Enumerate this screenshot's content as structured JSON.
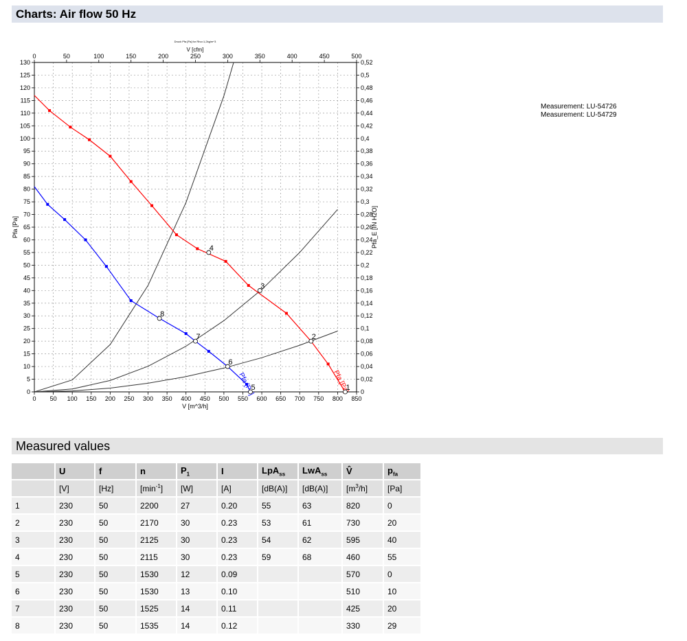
{
  "page": {
    "charts_heading": "Charts: Air flow 50 Hz",
    "measured_heading": "Measured values"
  },
  "measurements": [
    "Measurement: LU-54726",
    "Measurement: LU-54729"
  ],
  "chart_data": {
    "type": "line",
    "top_caption": "Druck Pfa [Pa] for Rho=1,2kg/m^3",
    "xlabel": "V [m^3/h]",
    "x2label": "V [cfm]",
    "ylabel": "Pfa [Pa]",
    "y2label": "Pfa_E [IN H2O]",
    "xlim": [
      0,
      850
    ],
    "ylim": [
      0,
      130
    ],
    "x2lim": [
      0,
      500
    ],
    "y2lim": [
      0,
      0.52
    ],
    "x_ticks": [
      0,
      50,
      100,
      150,
      200,
      250,
      300,
      350,
      400,
      450,
      500,
      550,
      600,
      650,
      700,
      750,
      800,
      850
    ],
    "y_ticks": [
      0,
      5,
      10,
      15,
      20,
      25,
      30,
      35,
      40,
      45,
      50,
      55,
      60,
      65,
      70,
      75,
      80,
      85,
      90,
      95,
      100,
      105,
      110,
      115,
      120,
      125,
      130
    ],
    "x2_ticks": [
      0,
      50,
      100,
      150,
      200,
      250,
      300,
      350,
      400,
      450,
      500
    ],
    "y2_ticks": [
      "0",
      "0,02",
      "0,04",
      "0,06",
      "0,08",
      "0,1",
      "0,12",
      "0,14",
      "0,16",
      "0,18",
      "0,2",
      "0,22",
      "0,24",
      "0,26",
      "0,28",
      "0,3",
      "0,32",
      "0,34",
      "0,36",
      "0,38",
      "0,4",
      "0,42",
      "0,44",
      "0,46",
      "0,48",
      "0,5",
      "0,52"
    ],
    "grid": true,
    "series": [
      {
        "name": "Pfa [Pa]",
        "color": "#ff0000",
        "x": [
          0,
          40,
          95,
          145,
          200,
          255,
          310,
          375,
          430,
          505,
          565,
          665,
          730,
          775,
          820
        ],
        "y": [
          117,
          111,
          104.5,
          99.5,
          93,
          83,
          73.5,
          62,
          56.5,
          51.5,
          42,
          31,
          20,
          11,
          0
        ],
        "markers": true
      },
      {
        "name": "Pfa [Pa]",
        "color": "#0000ff",
        "x": [
          0,
          35,
          80,
          135,
          190,
          255,
          330,
          400,
          425,
          460,
          510,
          560,
          570
        ],
        "y": [
          81,
          74,
          68,
          60,
          49.5,
          36,
          29,
          23,
          20,
          16,
          10,
          3,
          0
        ],
        "markers": true
      }
    ],
    "system_curves": [
      {
        "x": [
          0,
          100,
          200,
          300,
          400,
          500,
          600,
          680
        ],
        "y": [
          0,
          4.7,
          18.7,
          42.0,
          74.7,
          116.8,
          168.2,
          216.0
        ]
      },
      {
        "x": [
          0,
          100,
          200,
          300,
          400,
          500,
          600,
          700,
          800
        ],
        "y": [
          0,
          1.13,
          4.5,
          10.1,
          18.0,
          28.1,
          40.4,
          55.0,
          72.0
        ]
      },
      {
        "x": [
          0,
          100,
          200,
          300,
          400,
          500,
          600,
          700,
          800
        ],
        "y": [
          0,
          0.38,
          1.5,
          3.4,
          6.0,
          9.4,
          13.5,
          18.4,
          24.0
        ]
      }
    ],
    "operating_points": [
      {
        "label": "1",
        "x": 820,
        "y": 0
      },
      {
        "label": "2",
        "x": 730,
        "y": 20
      },
      {
        "label": "3",
        "x": 595,
        "y": 40
      },
      {
        "label": "4",
        "x": 460,
        "y": 55
      },
      {
        "label": "5",
        "x": 570,
        "y": 0
      },
      {
        "label": "6",
        "x": 510,
        "y": 10
      },
      {
        "label": "7",
        "x": 425,
        "y": 20
      },
      {
        "label": "8",
        "x": 330,
        "y": 29
      }
    ]
  },
  "table": {
    "headers": [
      {
        "main": "",
        "sub": "",
        "sup": ""
      },
      {
        "main": "U",
        "sub": "",
        "sup": ""
      },
      {
        "main": "f",
        "sub": "",
        "sup": ""
      },
      {
        "main": "n",
        "sub": "",
        "sup": ""
      },
      {
        "main": "P",
        "sub": "1",
        "sup": ""
      },
      {
        "main": "I",
        "sub": "",
        "sup": ""
      },
      {
        "main": "LpA",
        "sub": "ss",
        "sup": ""
      },
      {
        "main": "LwA",
        "sub": "ss",
        "sup": ""
      },
      {
        "main": "V̂",
        "sub": "",
        "sup": ""
      },
      {
        "main": "p",
        "sub": "fa",
        "sup": ""
      }
    ],
    "units": [
      {
        "main": "",
        "sup": "",
        "tail": ""
      },
      {
        "main": "[V]",
        "sup": "",
        "tail": ""
      },
      {
        "main": "[Hz]",
        "sup": "",
        "tail": ""
      },
      {
        "main": "[min",
        "sup": "-1",
        "tail": "]"
      },
      {
        "main": "[W]",
        "sup": "",
        "tail": ""
      },
      {
        "main": "[A]",
        "sup": "",
        "tail": ""
      },
      {
        "main": "[dB(A)]",
        "sup": "",
        "tail": ""
      },
      {
        "main": "[dB(A)]",
        "sup": "",
        "tail": ""
      },
      {
        "main": "[m",
        "sup": "3",
        "tail": "/h]"
      },
      {
        "main": "[Pa]",
        "sup": "",
        "tail": ""
      }
    ],
    "rows": [
      [
        "1",
        "230",
        "50",
        "2200",
        "27",
        "0.20",
        "55",
        "63",
        "820",
        "0"
      ],
      [
        "2",
        "230",
        "50",
        "2170",
        "30",
        "0.23",
        "53",
        "61",
        "730",
        "20"
      ],
      [
        "3",
        "230",
        "50",
        "2125",
        "30",
        "0.23",
        "54",
        "62",
        "595",
        "40"
      ],
      [
        "4",
        "230",
        "50",
        "2115",
        "30",
        "0.23",
        "59",
        "68",
        "460",
        "55"
      ],
      [
        "5",
        "230",
        "50",
        "1530",
        "12",
        "0.09",
        "",
        "",
        "570",
        "0"
      ],
      [
        "6",
        "230",
        "50",
        "1530",
        "13",
        "0.10",
        "",
        "",
        "510",
        "10"
      ],
      [
        "7",
        "230",
        "50",
        "1525",
        "14",
        "0.11",
        "",
        "",
        "425",
        "20"
      ],
      [
        "8",
        "230",
        "50",
        "1535",
        "14",
        "0.12",
        "",
        "",
        "330",
        "29"
      ]
    ]
  }
}
